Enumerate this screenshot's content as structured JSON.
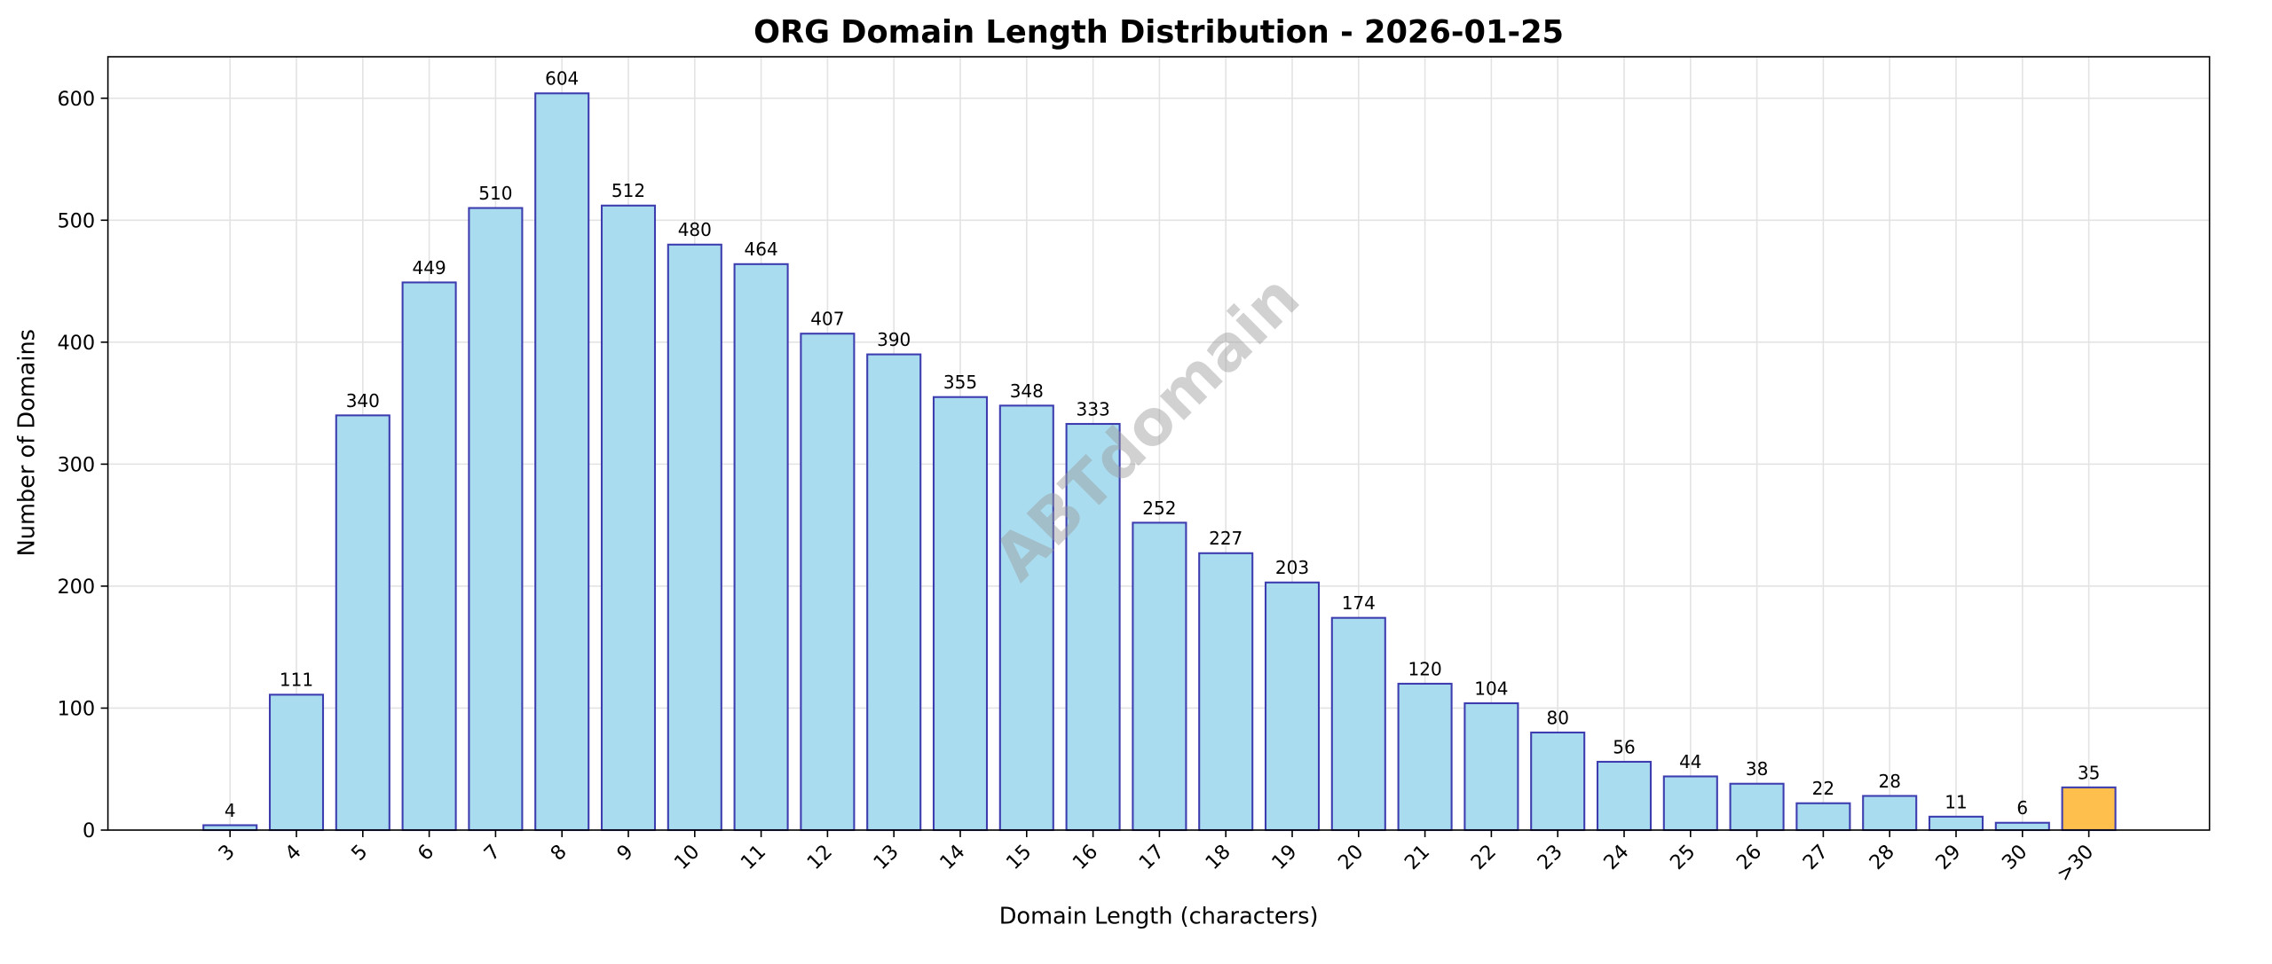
{
  "chart_data": {
    "type": "bar",
    "title": "ORG Domain Length Distribution - 2026-01-25",
    "xlabel": "Domain Length (characters)",
    "ylabel": "Number of Domains",
    "categories": [
      "3",
      "4",
      "5",
      "6",
      "7",
      "8",
      "9",
      "10",
      "11",
      "12",
      "13",
      "14",
      "15",
      "16",
      "17",
      "18",
      "19",
      "20",
      "21",
      "22",
      "23",
      "24",
      "25",
      "26",
      "27",
      "28",
      "29",
      "30",
      ">30"
    ],
    "values": [
      4,
      111,
      340,
      449,
      510,
      604,
      512,
      480,
      464,
      407,
      390,
      355,
      348,
      333,
      252,
      227,
      203,
      174,
      120,
      104,
      80,
      56,
      44,
      38,
      22,
      28,
      11,
      6,
      35
    ],
    "ylim": [
      0,
      634
    ],
    "yticks": [
      0,
      100,
      200,
      300,
      400,
      500,
      600
    ],
    "grid": true,
    "data_labels": true,
    "colors": {
      "bar": "#aadcf0",
      "highlight_bar": "#ffbf4d",
      "edge": "#3d3db0",
      "grid": "#e3e3e3"
    },
    "highlight_category": ">30",
    "watermark": "ABTdomain"
  }
}
